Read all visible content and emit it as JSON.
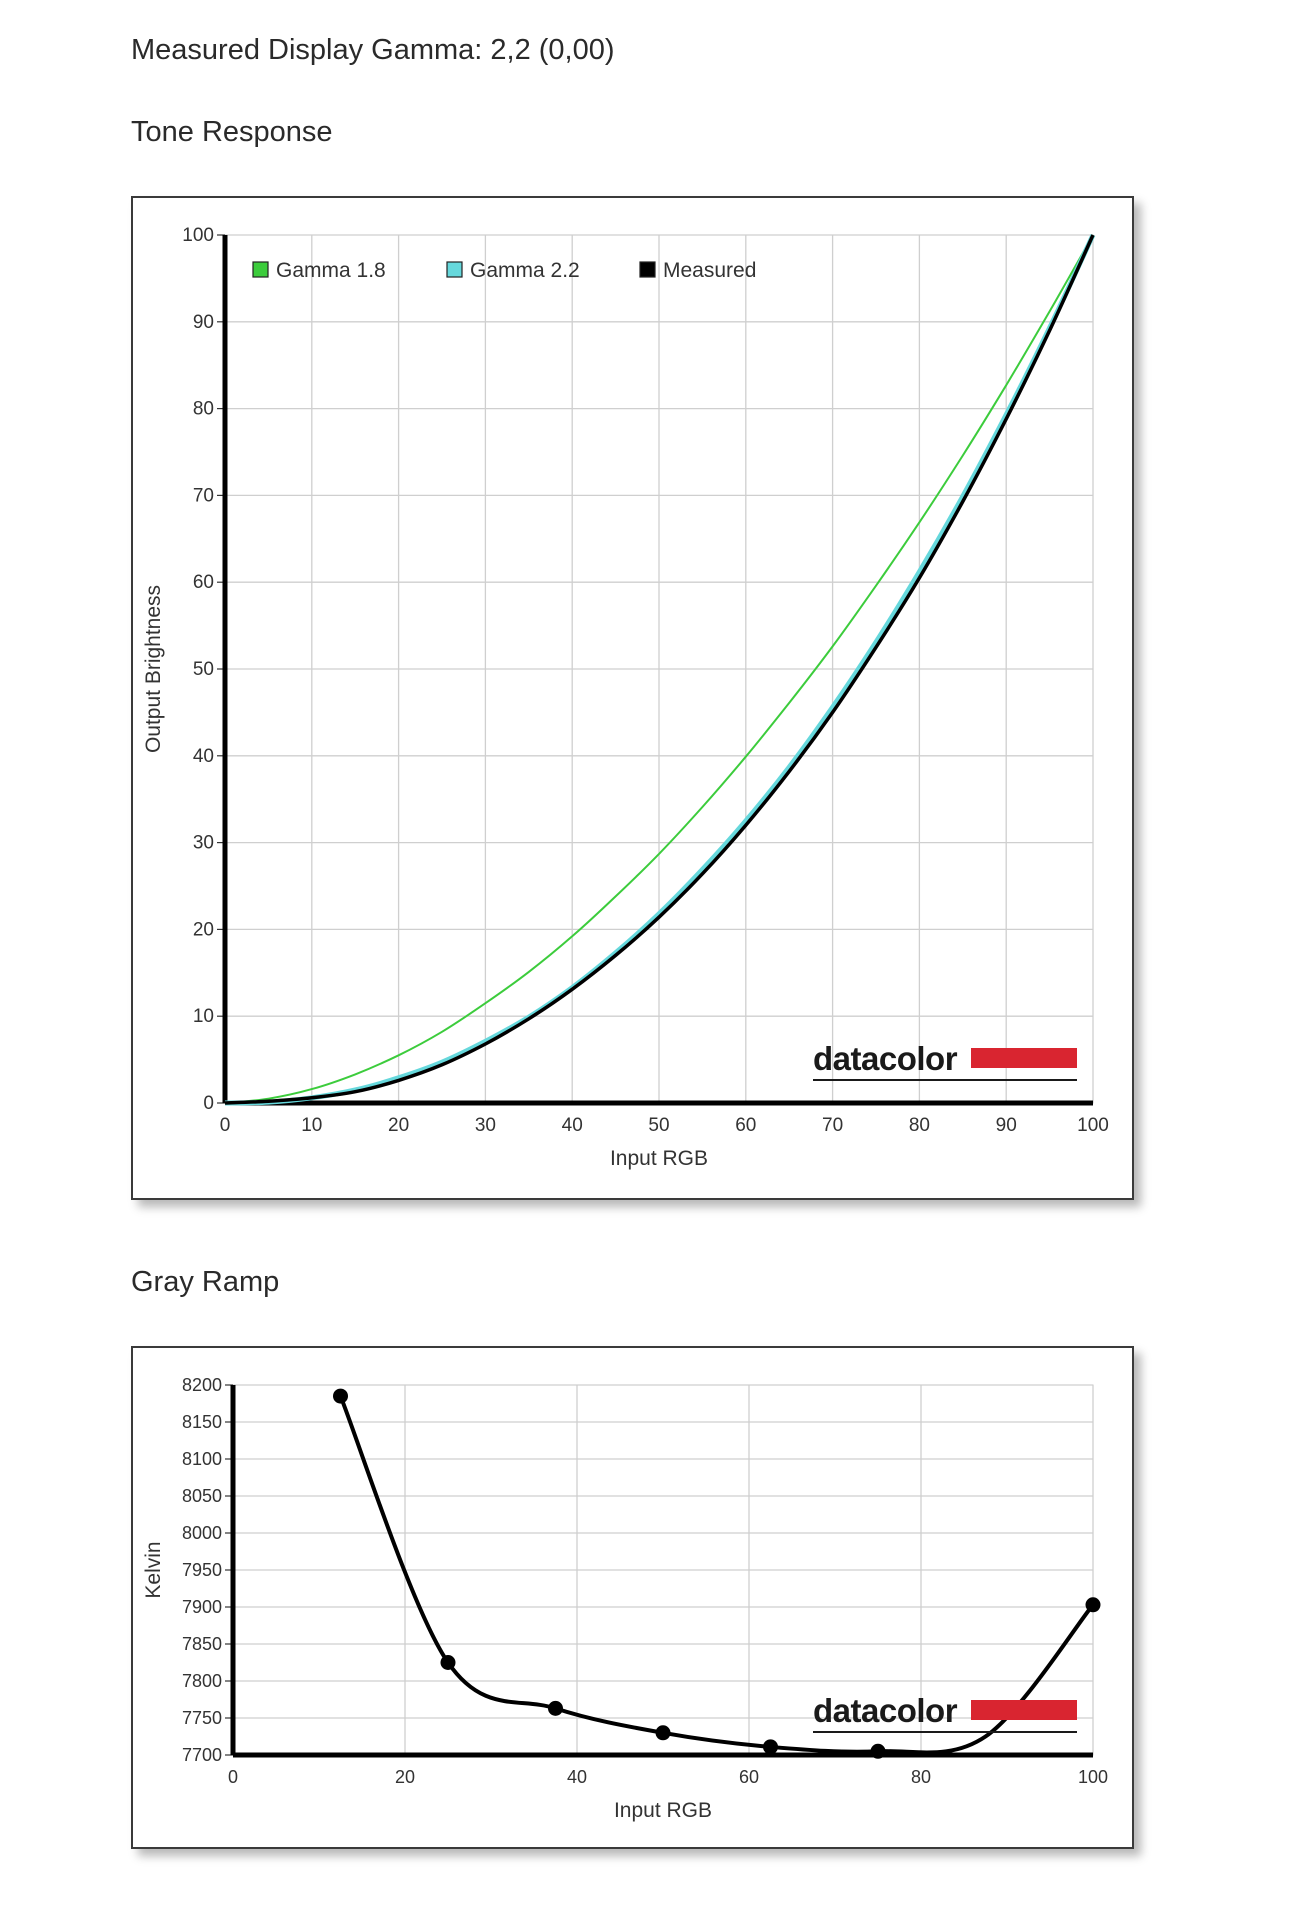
{
  "header": {
    "measured_gamma": "Measured Display Gamma: 2,2 (0,00)",
    "tone_response_title": "Tone Response",
    "gray_ramp_title": "Gray Ramp"
  },
  "brand": {
    "logo_text": "datacolor",
    "logo_accent_color": "#d92530"
  },
  "chart_data": [
    {
      "id": "tone-response",
      "type": "line",
      "xlabel": "Input RGB",
      "ylabel": "Output Brightness",
      "xlim": [
        0,
        100
      ],
      "ylim": [
        0,
        100
      ],
      "xticks": [
        0,
        10,
        20,
        30,
        40,
        50,
        60,
        70,
        80,
        90,
        100
      ],
      "yticks": [
        0,
        10,
        20,
        30,
        40,
        50,
        60,
        70,
        80,
        90,
        100
      ],
      "grid": true,
      "legend_position": "top-left",
      "series": [
        {
          "name": "Gamma 1.8",
          "color": "#3ccc3c",
          "x": [
            0,
            5,
            10,
            15,
            20,
            25,
            30,
            35,
            40,
            45,
            50,
            55,
            60,
            65,
            70,
            75,
            80,
            85,
            90,
            95,
            100
          ],
          "y": [
            0,
            0.5,
            1.6,
            3.3,
            5.5,
            8.2,
            11.5,
            15.1,
            19.2,
            23.8,
            28.7,
            34.1,
            39.9,
            46.1,
            52.6,
            59.6,
            66.9,
            74.6,
            82.7,
            91.2,
            100
          ]
        },
        {
          "name": "Gamma 2.2",
          "color": "#66d8dc",
          "x": [
            0,
            5,
            10,
            15,
            20,
            25,
            30,
            35,
            40,
            45,
            50,
            55,
            60,
            65,
            70,
            75,
            80,
            85,
            90,
            95,
            100
          ],
          "y": [
            0,
            0.1,
            0.6,
            1.5,
            2.9,
            4.7,
            7.1,
            9.9,
            13.3,
            17.3,
            21.8,
            26.9,
            32.5,
            38.7,
            45.6,
            53.1,
            61.2,
            69.9,
            79.3,
            89.3,
            100
          ]
        },
        {
          "name": "Measured",
          "color": "#000000",
          "x": [
            0,
            5,
            10,
            15,
            20,
            25,
            30,
            35,
            40,
            45,
            50,
            55,
            60,
            65,
            70,
            75,
            80,
            85,
            90,
            95,
            100
          ],
          "y": [
            0,
            0.2,
            0.6,
            1.3,
            2.6,
            4.4,
            6.8,
            9.7,
            13.1,
            17.0,
            21.4,
            26.4,
            32.0,
            38.2,
            45.0,
            52.5,
            60.5,
            69.3,
            78.8,
            89.0,
            100
          ]
        }
      ]
    },
    {
      "id": "gray-ramp",
      "type": "line",
      "xlabel": "Input RGB",
      "ylabel": "Kelvin",
      "xlim": [
        0,
        100
      ],
      "ylim": [
        7700,
        8200
      ],
      "xticks": [
        0,
        20,
        40,
        60,
        80,
        100
      ],
      "yticks": [
        7700,
        7750,
        7800,
        7850,
        7900,
        7950,
        8000,
        8050,
        8100,
        8150,
        8200
      ],
      "grid": true,
      "series": [
        {
          "name": "",
          "color": "#000000",
          "x": [
            12.5,
            25,
            37.5,
            50,
            62.5,
            75,
            87.5,
            100
          ],
          "y": [
            8185,
            7825,
            7763,
            7730,
            7711,
            7705,
            7725,
            7903
          ]
        }
      ]
    }
  ]
}
